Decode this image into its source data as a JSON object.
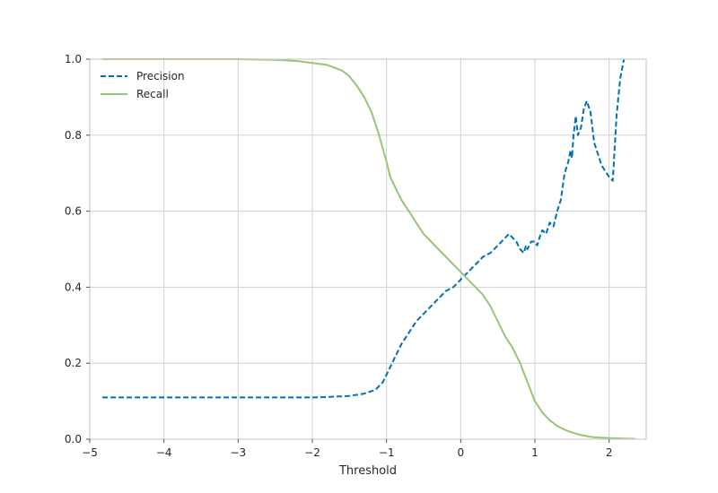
{
  "chart_data": {
    "type": "line",
    "title": "",
    "xlabel": "Threshold",
    "ylabel": "",
    "xlim": [
      -5.0,
      2.5
    ],
    "ylim": [
      0.0,
      1.0
    ],
    "grid": true,
    "legend_position": "top-left",
    "x_ticks": [
      -5,
      -4,
      -3,
      -2,
      -1,
      0,
      1,
      2
    ],
    "x_tick_labels": [
      "−5",
      "−4",
      "−3",
      "−2",
      "−1",
      "0",
      "1",
      "2"
    ],
    "y_ticks": [
      0.0,
      0.2,
      0.4,
      0.6,
      0.8,
      1.0
    ],
    "y_tick_labels": [
      "0.0",
      "0.2",
      "0.4",
      "0.6",
      "0.8",
      "1.0"
    ],
    "series": [
      {
        "name": "Precision",
        "color": "#0072b2",
        "style": "dashed",
        "x": [
          -4.83,
          -4.0,
          -3.0,
          -2.0,
          -1.8,
          -1.5,
          -1.3,
          -1.15,
          -1.05,
          -1.0,
          -0.95,
          -0.9,
          -0.8,
          -0.7,
          -0.6,
          -0.5,
          -0.4,
          -0.3,
          -0.2,
          -0.1,
          0.0,
          0.1,
          0.2,
          0.3,
          0.4,
          0.5,
          0.6,
          0.65,
          0.7,
          0.75,
          0.8,
          0.85,
          0.88,
          0.9,
          0.95,
          1.0,
          1.03,
          1.06,
          1.1,
          1.15,
          1.2,
          1.25,
          1.3,
          1.35,
          1.4,
          1.45,
          1.48,
          1.5,
          1.52,
          1.55,
          1.58,
          1.62,
          1.66,
          1.7,
          1.75,
          1.8,
          1.9,
          2.0,
          2.05,
          2.1,
          2.15,
          2.2
        ],
        "y": [
          0.11,
          0.11,
          0.11,
          0.11,
          0.111,
          0.114,
          0.12,
          0.13,
          0.15,
          0.17,
          0.19,
          0.21,
          0.25,
          0.28,
          0.31,
          0.33,
          0.35,
          0.37,
          0.39,
          0.4,
          0.42,
          0.44,
          0.46,
          0.48,
          0.49,
          0.51,
          0.53,
          0.54,
          0.53,
          0.52,
          0.5,
          0.49,
          0.51,
          0.5,
          0.52,
          0.52,
          0.51,
          0.53,
          0.55,
          0.54,
          0.57,
          0.56,
          0.6,
          0.63,
          0.7,
          0.73,
          0.76,
          0.74,
          0.8,
          0.85,
          0.8,
          0.82,
          0.87,
          0.89,
          0.86,
          0.78,
          0.72,
          0.69,
          0.68,
          0.85,
          0.95,
          1.0
        ]
      },
      {
        "name": "Recall",
        "color": "#9ac475",
        "style": "solid",
        "x": [
          -4.83,
          -4.0,
          -3.0,
          -2.5,
          -2.2,
          -2.0,
          -1.8,
          -1.6,
          -1.5,
          -1.4,
          -1.3,
          -1.2,
          -1.1,
          -1.0,
          -0.95,
          -0.9,
          -0.8,
          -0.7,
          -0.6,
          -0.5,
          -0.4,
          -0.3,
          -0.2,
          -0.1,
          0.0,
          0.1,
          0.2,
          0.3,
          0.4,
          0.5,
          0.6,
          0.7,
          0.8,
          0.9,
          1.0,
          1.1,
          1.2,
          1.3,
          1.4,
          1.5,
          1.6,
          1.7,
          1.8,
          2.0,
          2.2,
          2.35
        ],
        "y": [
          1.0,
          1.0,
          1.0,
          0.998,
          0.995,
          0.99,
          0.985,
          0.97,
          0.955,
          0.93,
          0.9,
          0.86,
          0.8,
          0.73,
          0.69,
          0.67,
          0.63,
          0.6,
          0.57,
          0.54,
          0.52,
          0.5,
          0.48,
          0.46,
          0.44,
          0.42,
          0.4,
          0.38,
          0.35,
          0.31,
          0.27,
          0.24,
          0.2,
          0.15,
          0.1,
          0.07,
          0.05,
          0.035,
          0.025,
          0.018,
          0.012,
          0.008,
          0.005,
          0.003,
          0.002,
          0.001
        ]
      }
    ]
  }
}
